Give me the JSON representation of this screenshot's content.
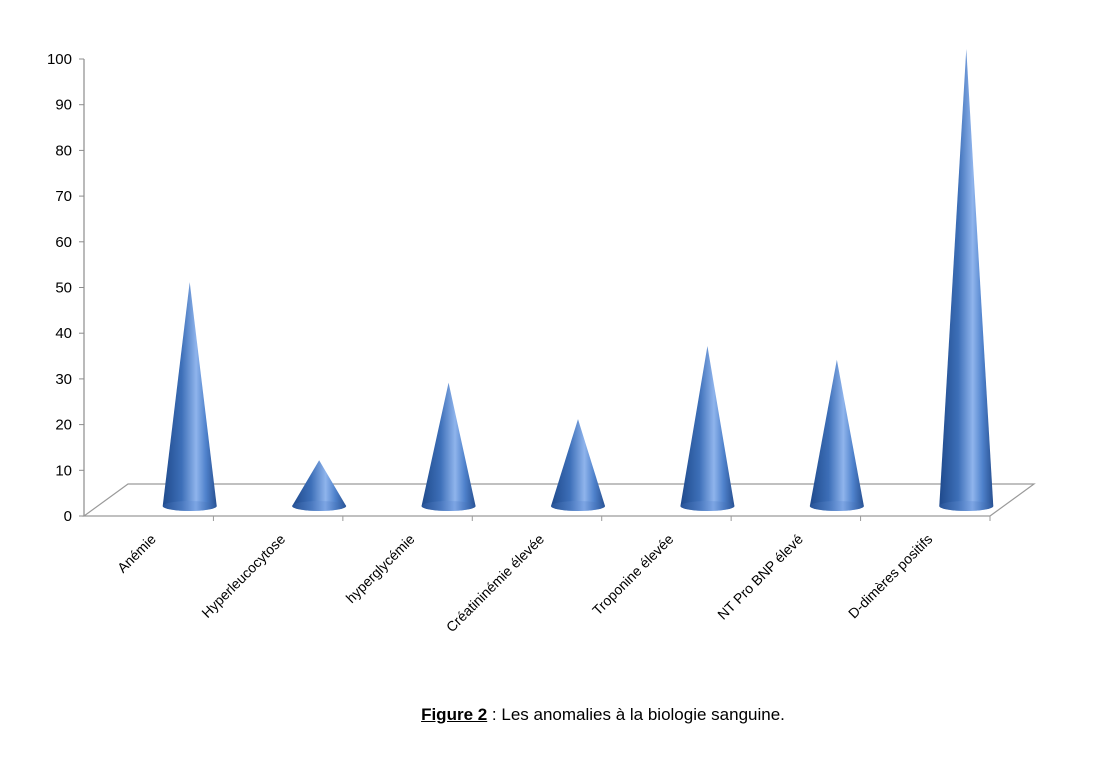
{
  "chart_data": {
    "type": "bar",
    "shape": "cone",
    "categories": [
      "Anémie",
      "Hyperleucocytose",
      "hyperglycémie",
      "Créatininémie élevée",
      "Troponine élevée",
      "NT Pro BNP élevé",
      "D-dimères positifs"
    ],
    "values": [
      49,
      10,
      27,
      19,
      35,
      32,
      100
    ],
    "ylim": [
      0,
      100
    ],
    "yticks": [
      "0",
      "10",
      "20",
      "30",
      "40",
      "50",
      "60",
      "70",
      "80",
      "90",
      "100"
    ],
    "color": "#4a7fc8"
  },
  "caption": {
    "lead": "Figure 2",
    "text": " : Les anomalies à la biologie sanguine."
  }
}
